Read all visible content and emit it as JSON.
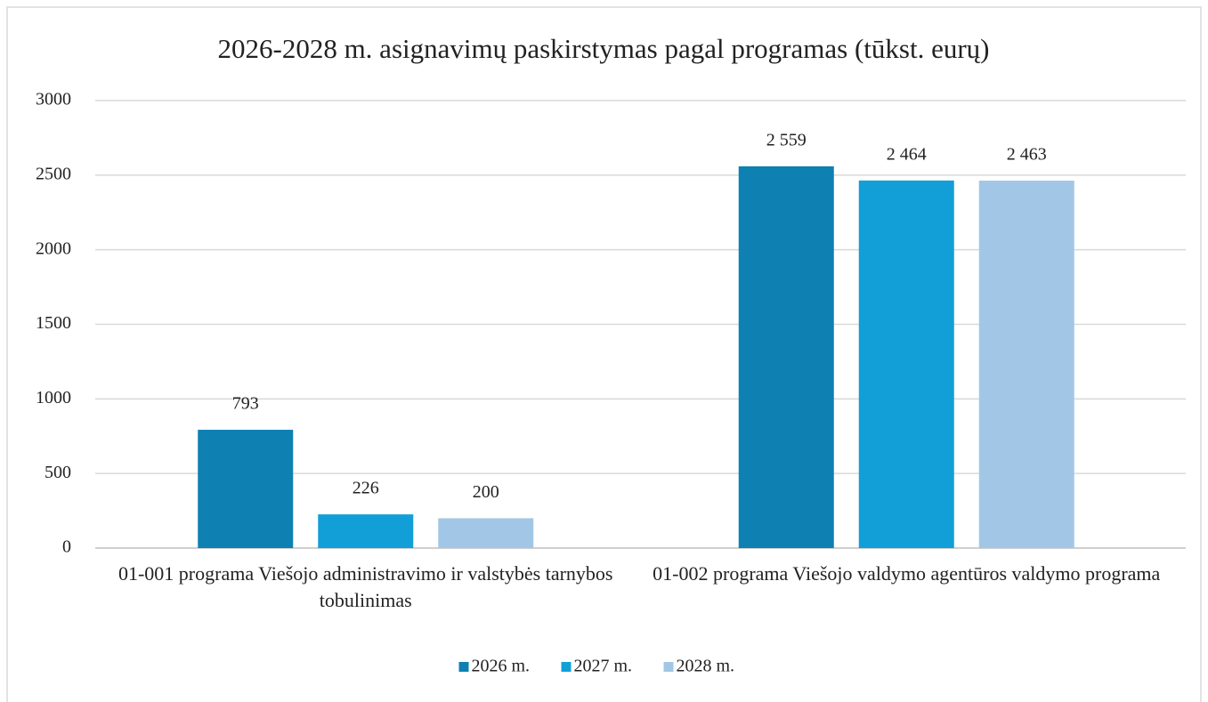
{
  "chart_data": {
    "type": "bar",
    "title": "2026-2028  m. asignavimų paskirstymas pagal programas (tūkst. eurų)",
    "categories": [
      "01-001 programa Viešojo administravimo ir valstybės tarnybos tobulinimas",
      "01-002 programa Viešojo valdymo agentūros valdymo programa"
    ],
    "series": [
      {
        "name": "2026 m.",
        "color": "#0e80b2",
        "values": [
          793,
          2559
        ],
        "value_labels": [
          "793",
          "2 559"
        ]
      },
      {
        "name": "2027 m.",
        "color": "#129fd8",
        "values": [
          226,
          2464
        ],
        "value_labels": [
          "226",
          "2 464"
        ]
      },
      {
        "name": "2028 m.",
        "color": "#a2c7e6",
        "values": [
          200,
          2463
        ],
        "value_labels": [
          "200",
          "2 463"
        ]
      }
    ],
    "ylim": [
      0,
      3000
    ],
    "yticks": [
      0,
      500,
      1000,
      1500,
      2000,
      2500,
      3000
    ],
    "grid": true,
    "legend": "bottom"
  }
}
